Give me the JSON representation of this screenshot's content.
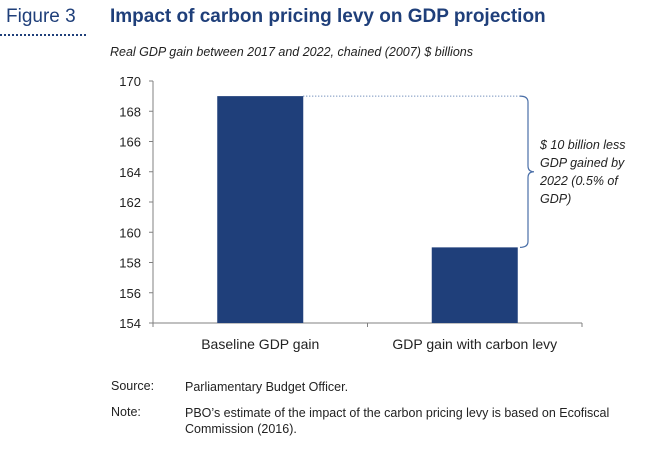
{
  "figure": {
    "label": "Figure 3",
    "title": "Impact of carbon pricing levy on GDP projection",
    "subtitle": "Real GDP gain between 2017 and 2022, chained (2007) $ billions"
  },
  "chart_data": {
    "type": "bar",
    "categories": [
      "Baseline GDP gain",
      "GDP gain with carbon levy"
    ],
    "values": [
      169,
      159
    ],
    "ylim": [
      154,
      170
    ],
    "yticks": [
      154,
      156,
      158,
      160,
      162,
      164,
      166,
      168,
      170
    ],
    "xlabel": "",
    "ylabel": "",
    "grid": false,
    "bar_color": "#1f3f7a",
    "annotation": {
      "lines": [
        "$ 10 billion less",
        "GDP gained by",
        "2022 (0.5% of",
        "GDP)"
      ]
    }
  },
  "notes": {
    "source_label": "Source:",
    "source_text": "Parliamentary Budget Officer.",
    "note_label": "Note:",
    "note_text": "PBO’s estimate of the impact of the carbon pricing levy is based on Ecofiscal Commission (2016)."
  }
}
